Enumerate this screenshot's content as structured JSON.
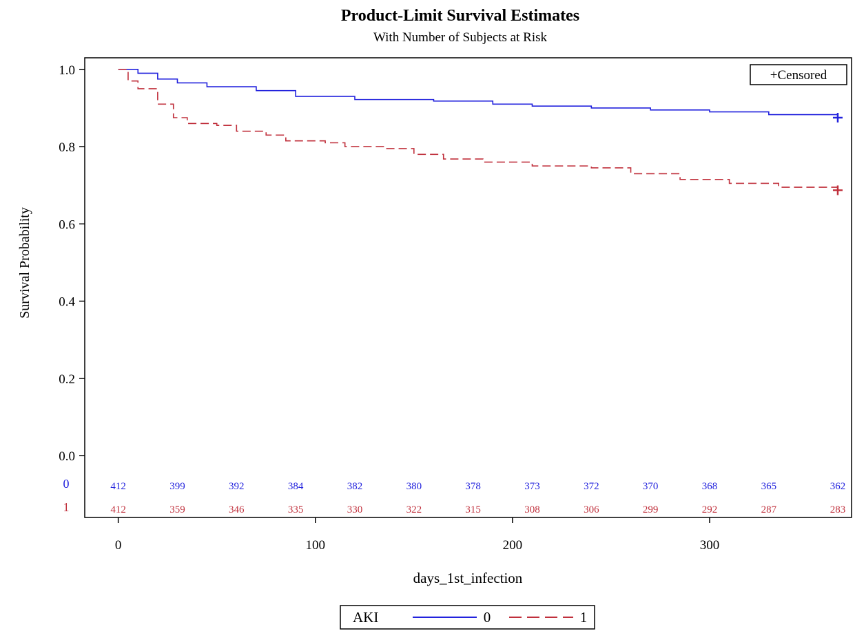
{
  "chart_data": {
    "type": "line",
    "title": "Product-Limit Survival Estimates",
    "subtitle": "With Number of Subjects at Risk",
    "xlabel": "days_1st_infection",
    "ylabel": "Survival Probability",
    "xlim": [
      -17,
      372
    ],
    "ylim": [
      -0.16,
      1.03
    ],
    "x_ticks": [
      0,
      100,
      200,
      300
    ],
    "y_ticks": [
      0.0,
      0.2,
      0.4,
      0.6,
      0.8,
      1.0
    ],
    "x_tick_labels": [
      "0",
      "100",
      "200",
      "300"
    ],
    "y_tick_labels": [
      "0.0",
      "0.2",
      "0.4",
      "0.6",
      "0.8",
      "1.0"
    ],
    "grid": false,
    "censored_legend": "+Censored",
    "legend_title": "AKI",
    "legend_placement": "bottom",
    "series": [
      {
        "name": "0",
        "color": "#2222dd",
        "dash": "solid",
        "points": [
          [
            0,
            1.0
          ],
          [
            10,
            0.99
          ],
          [
            20,
            0.975
          ],
          [
            30,
            0.965
          ],
          [
            45,
            0.955
          ],
          [
            70,
            0.945
          ],
          [
            90,
            0.93
          ],
          [
            120,
            0.922
          ],
          [
            160,
            0.918
          ],
          [
            190,
            0.91
          ],
          [
            210,
            0.905
          ],
          [
            240,
            0.9
          ],
          [
            270,
            0.895
          ],
          [
            300,
            0.89
          ],
          [
            330,
            0.883
          ],
          [
            365,
            0.875
          ]
        ],
        "censored_at": [
          365,
          0.875
        ]
      },
      {
        "name": "1",
        "color": "#c0303c",
        "dash": "dashed",
        "points": [
          [
            0,
            1.0
          ],
          [
            5,
            0.97
          ],
          [
            10,
            0.95
          ],
          [
            20,
            0.91
          ],
          [
            28,
            0.875
          ],
          [
            35,
            0.86
          ],
          [
            50,
            0.855
          ],
          [
            60,
            0.84
          ],
          [
            75,
            0.83
          ],
          [
            85,
            0.815
          ],
          [
            105,
            0.81
          ],
          [
            115,
            0.8
          ],
          [
            135,
            0.795
          ],
          [
            150,
            0.78
          ],
          [
            165,
            0.768
          ],
          [
            185,
            0.76
          ],
          [
            210,
            0.75
          ],
          [
            240,
            0.745
          ],
          [
            260,
            0.73
          ],
          [
            285,
            0.715
          ],
          [
            310,
            0.705
          ],
          [
            335,
            0.695
          ],
          [
            365,
            0.687
          ]
        ],
        "censored_at": [
          365,
          0.687
        ]
      }
    ],
    "at_risk": {
      "x": [
        0,
        30,
        60,
        90,
        120,
        150,
        180,
        210,
        240,
        270,
        300,
        330,
        365
      ],
      "groups": [
        {
          "label": "0",
          "color": "#2222dd",
          "values": [
            "412",
            "399",
            "392",
            "384",
            "382",
            "380",
            "378",
            "373",
            "372",
            "370",
            "368",
            "365",
            "362"
          ]
        },
        {
          "label": "1",
          "color": "#c0303c",
          "values": [
            "412",
            "359",
            "346",
            "335",
            "330",
            "322",
            "315",
            "308",
            "306",
            "299",
            "292",
            "287",
            "283"
          ]
        }
      ]
    }
  }
}
